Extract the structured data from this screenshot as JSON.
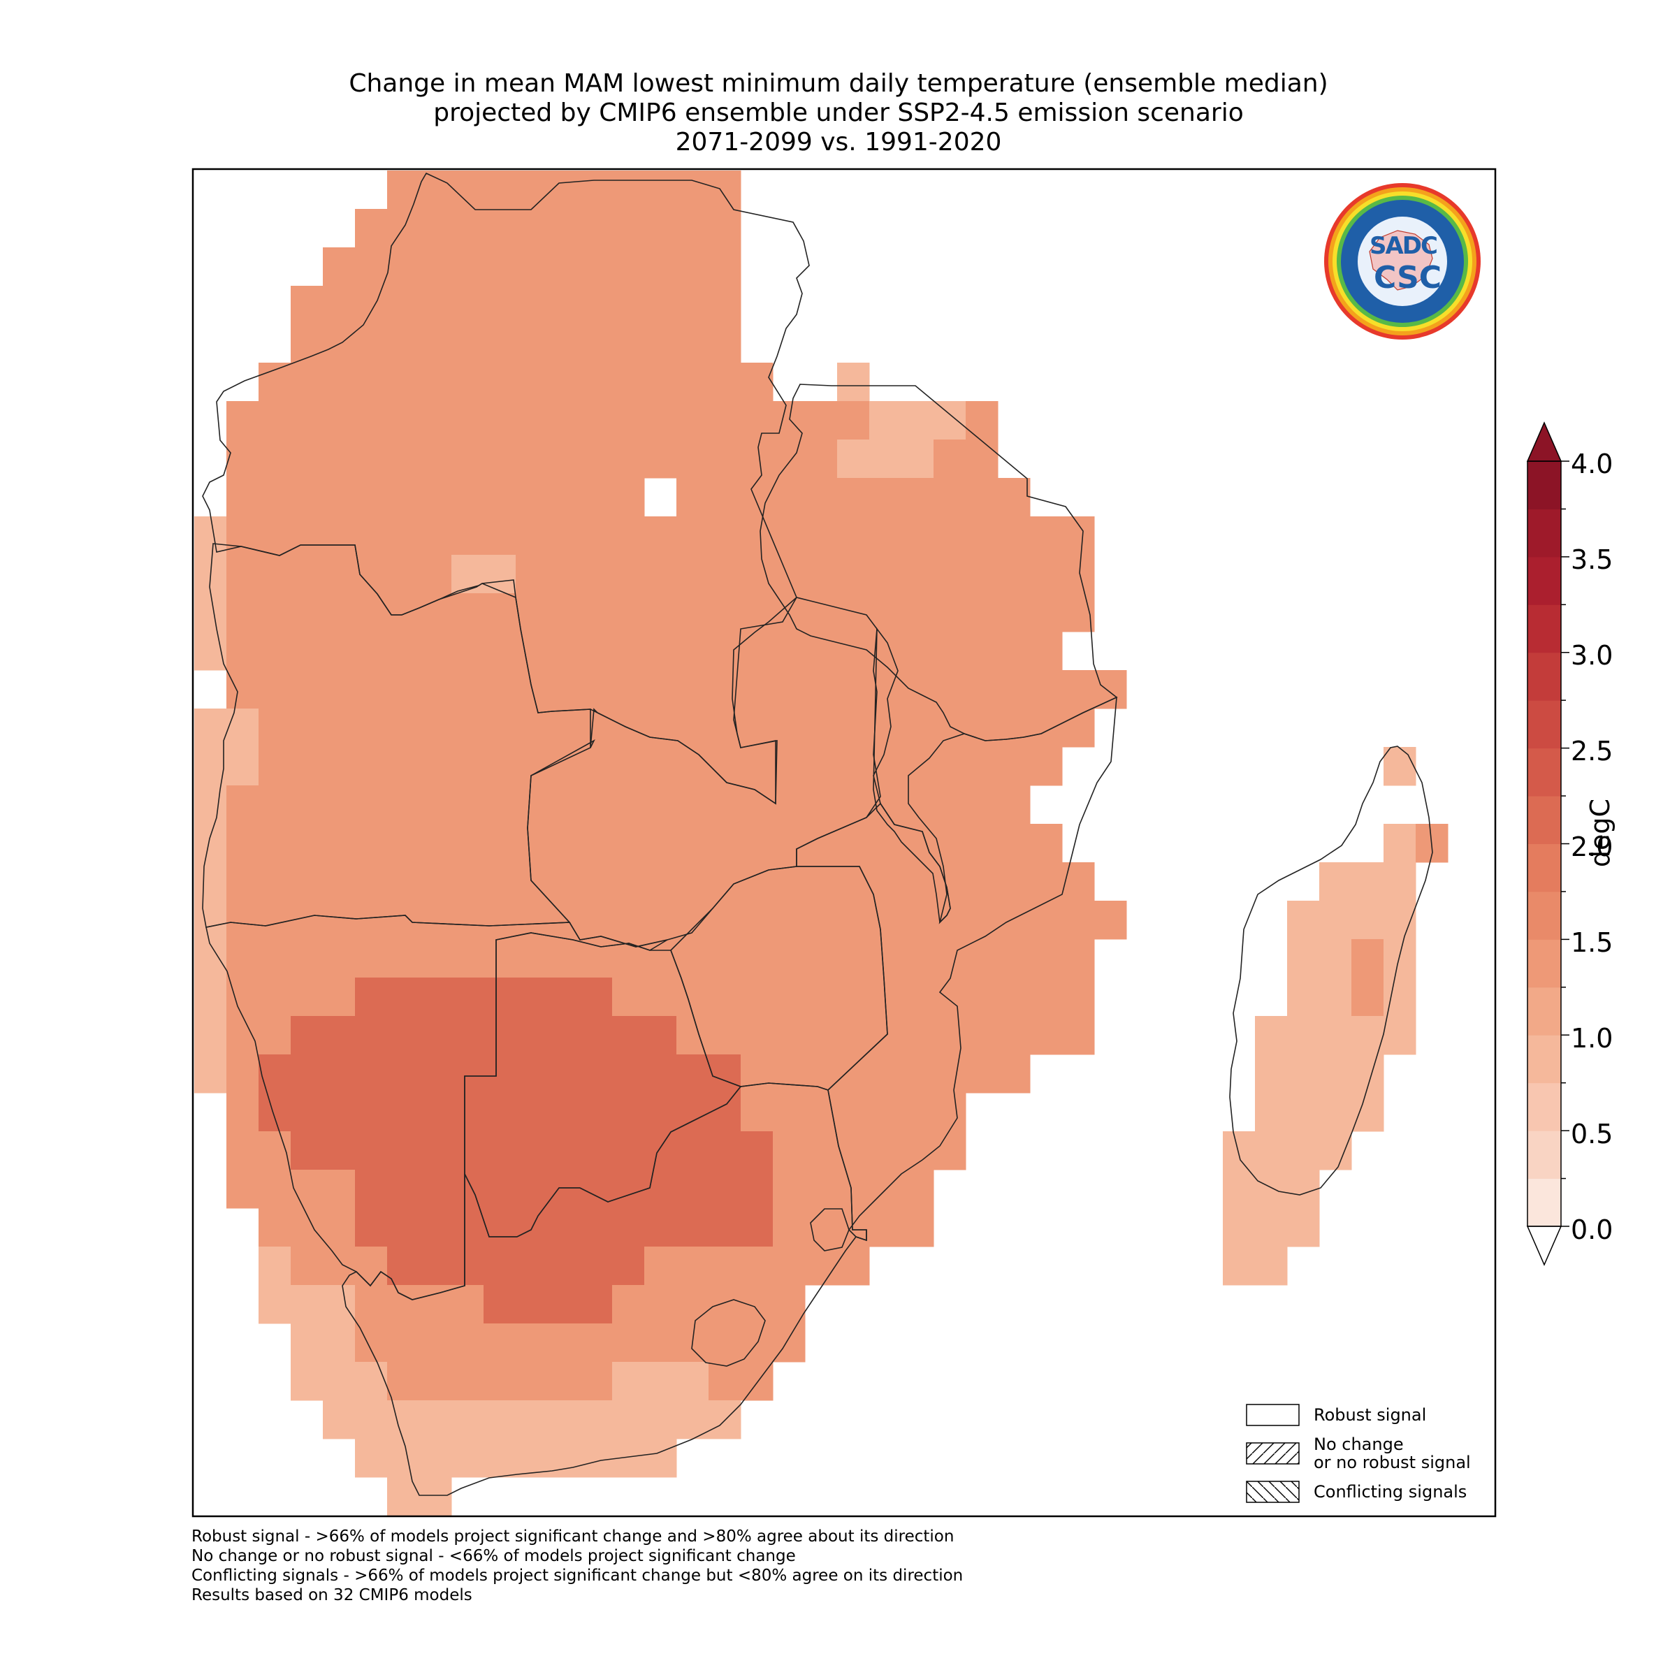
{
  "title": {
    "line1": "Change in mean MAM lowest minimum daily temperature (ensemble median)",
    "line2": "projected by CMIP6 ensemble under SSP2-4.5 emission scenario",
    "line3": "2071-2099 vs. 1991-2020"
  },
  "colorbar": {
    "unit": "degC",
    "tick_labels": [
      "0.0",
      "0.5",
      "1.0",
      "1.5",
      "2.0",
      "2.5",
      "3.0",
      "3.5",
      "4.0"
    ],
    "range": [
      0.0,
      4.0
    ],
    "step": 0.25,
    "extend": "both",
    "colors": [
      "#fbe6dc",
      "#f9d4c3",
      "#f8c6b0",
      "#f5b89b",
      "#f2a988",
      "#ee9977",
      "#e98a69",
      "#e47c5e",
      "#dc6b53",
      "#d45a4a",
      "#cc4b42",
      "#c33c3a",
      "#b82c33",
      "#ab1f2e",
      "#9e1a2a",
      "#8c1426"
    ]
  },
  "legend": {
    "robust": "Robust signal",
    "no_change_1": "No change",
    "no_change_2": "or no robust signal",
    "conflicting": "Conflicting signals"
  },
  "notes": {
    "n1": "Robust signal - >66% of models project significant change and >80% agree about its direction",
    "n2": "No change or no robust signal - <66% of models project significant change",
    "n3": "Conflicting signals - >66% of models project significant change but <80% agree on its direction",
    "n4": "Results based on 32 CMIP6 models"
  },
  "logo": {
    "text1": "SADC",
    "text2": "CSC"
  },
  "map_data": {
    "grid_origin_lon": 11.5,
    "grid_origin_lat": -1.5,
    "cell_deg": 1,
    "rows": [
      "______22222222222_____________________",
      "_____222222222222_____________________",
      "____2222222222222_____________________",
      "___22222222222222_____________________",
      "___22222222222222_____________________",
      "__2222222222222222__1_________________",
      "_222222222222222222221112_____________",
      "_222222222222222222211122_____________",
      "_2222222222222_22222222222____________",
      "1222222222222222222222222222__________",
      "1222222211222222222222222222__________",
      "1222222222222222222222222222__________",
      "122222222222222222222222222___________",
      "_2222222222222222222222222222_________",
      "1122222222222222222222222222__________",
      "112222222222222222222222222__________1",
      "12222222222222222222222222_____________",
      "122222222222222222222222222__________12",
      "1222222222222222222222222222_______111",
      "12222222222222222222222222222_____1111",
      "1222222222222222222222222222______1121",
      "1222233333333222222222222222______1121",
      "1223333333333332222222222222_____11111",
      "12333333333333333222222222_______1111",
      "_23333333333333332222222_________1111",
      "_22333333333333333222222________1111",
      "_2222333333333333322222_________111",
      "__222333333333333322222_________111",
      "__1222333333332222222___________11",
      "__11122223333222222_____________",
      "___1122222222222222_____________",
      "___111222222211122______________",
      "____1111111111111________________",
      "_____1111111111_________________",
      "______11________________________"
    ]
  }
}
